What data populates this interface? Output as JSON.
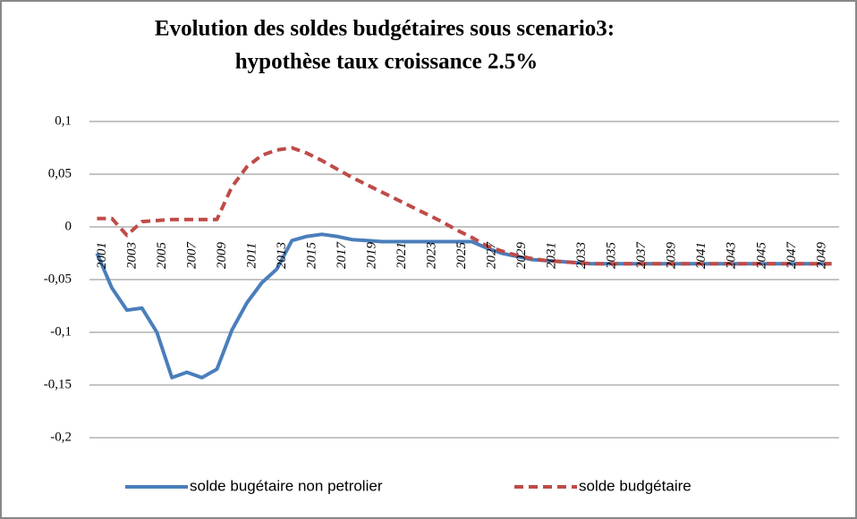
{
  "chart_data": {
    "type": "line",
    "title": [
      "Evolution des soldes budgétaires sous scenario3:",
      "hypothèse taux croissance 2.5%"
    ],
    "categories": [
      "2001",
      null,
      "2003",
      null,
      "2005",
      null,
      "2007",
      null,
      "2009",
      null,
      "2011",
      null,
      "2013",
      null,
      "2015",
      null,
      "2017",
      null,
      "2019",
      null,
      "2021",
      null,
      "2023",
      null,
      "2025",
      null,
      "2027",
      null,
      "2029",
      null,
      "2031",
      null,
      "2033",
      null,
      "2035",
      null,
      "2037",
      null,
      "2039",
      null,
      "2041",
      null,
      "2043",
      null,
      "2045",
      null,
      "2047",
      null,
      "2049",
      null
    ],
    "series": [
      {
        "name": "solde bugétaire non petrolier",
        "color": "#4a7ebb",
        "dashed": false,
        "values": [
          -0.025,
          -0.058,
          -0.079,
          -0.077,
          -0.1,
          -0.143,
          -0.138,
          -0.143,
          -0.135,
          -0.098,
          -0.072,
          -0.053,
          -0.04,
          -0.013,
          -0.009,
          -0.007,
          -0.009,
          -0.012,
          -0.013,
          -0.014,
          -0.014,
          -0.014,
          -0.014,
          -0.014,
          -0.014,
          -0.014,
          -0.02,
          -0.025,
          -0.028,
          -0.031,
          -0.032,
          -0.033,
          -0.034,
          -0.035,
          -0.035,
          -0.035,
          -0.035,
          -0.035,
          -0.035,
          -0.035,
          -0.035,
          -0.035,
          -0.035,
          -0.035,
          -0.035,
          -0.035,
          -0.035,
          -0.035,
          -0.035,
          -0.035
        ]
      },
      {
        "name": "solde budgétaire",
        "color": "#be4b48",
        "dashed": true,
        "values": [
          0.008,
          0.008,
          -0.008,
          0.005,
          0.006,
          0.007,
          0.007,
          0.007,
          0.007,
          0.038,
          0.057,
          0.068,
          0.073,
          0.075,
          0.07,
          0.063,
          0.055,
          0.047,
          0.04,
          0.033,
          0.026,
          0.019,
          0.012,
          0.005,
          -0.003,
          -0.01,
          -0.018,
          -0.023,
          -0.027,
          -0.03,
          -0.032,
          -0.033,
          -0.034,
          -0.035,
          -0.035,
          -0.035,
          -0.035,
          -0.035,
          -0.035,
          -0.035,
          -0.035,
          -0.035,
          -0.035,
          -0.035,
          -0.035,
          -0.035,
          -0.035,
          -0.035,
          -0.035,
          -0.035
        ]
      }
    ],
    "ylim": [
      -0.2,
      0.1
    ],
    "yticks": [
      {
        "value": -0.2,
        "label": "-0,2"
      },
      {
        "value": -0.15,
        "label": "-0,15"
      },
      {
        "value": -0.1,
        "label": "-0,1"
      },
      {
        "value": -0.05,
        "label": "-0,05"
      },
      0,
      {
        "value": 0.05,
        "label": "0,05"
      },
      {
        "value": 0.1,
        "label": "0,1"
      }
    ],
    "grid": true,
    "legend": "bottom"
  }
}
